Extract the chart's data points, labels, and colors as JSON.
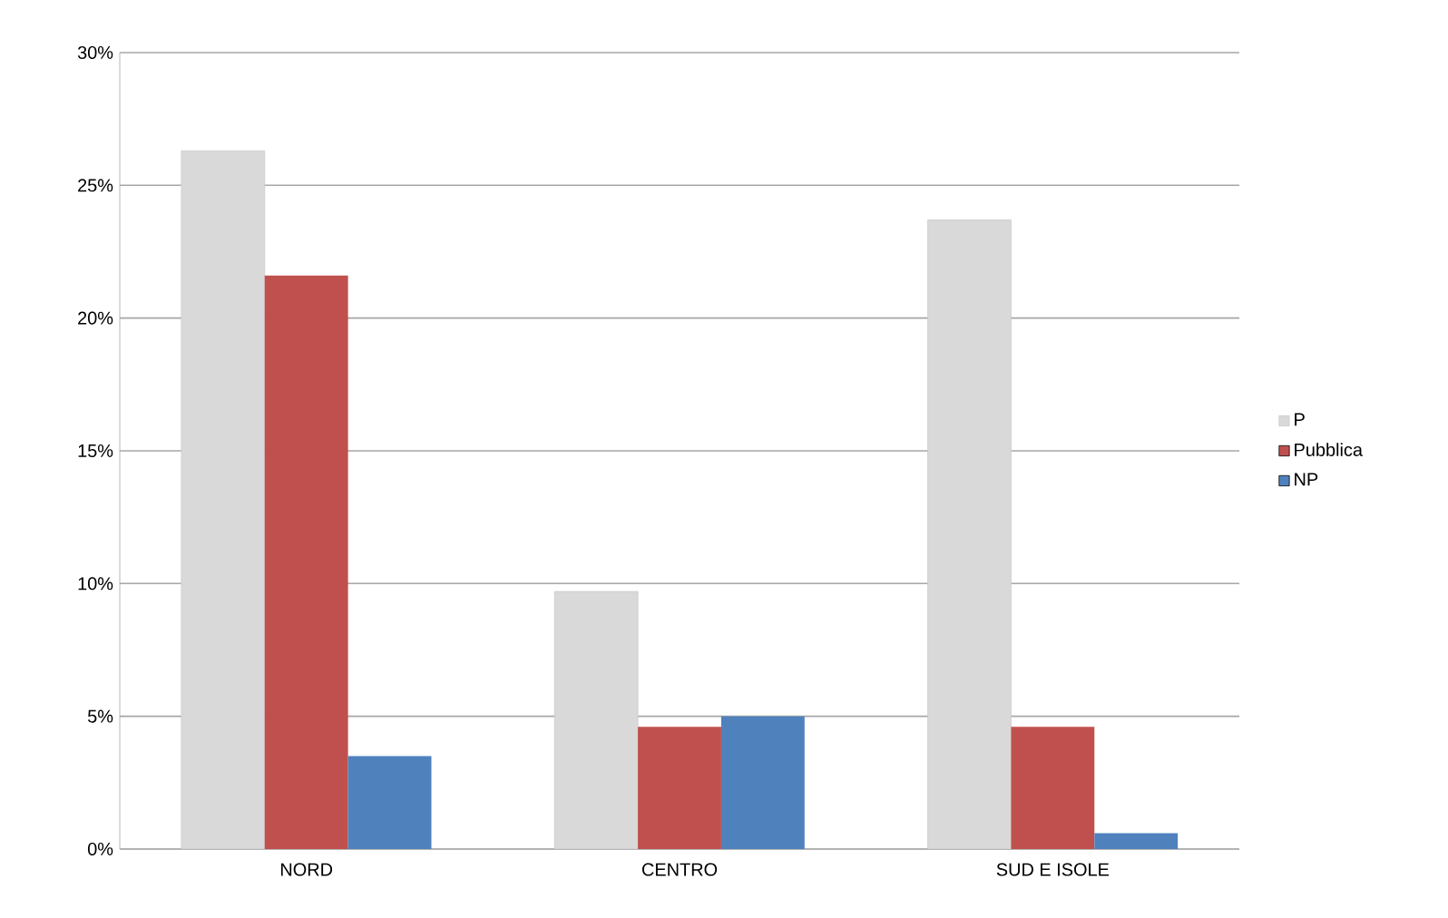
{
  "chart_data": {
    "type": "bar",
    "categories": [
      "NORD",
      "CENTRO",
      "SUD E ISOLE"
    ],
    "series": [
      {
        "name": "P",
        "color": "#d9d9d9",
        "values": [
          26.3,
          9.7,
          23.7
        ]
      },
      {
        "name": "Pubblica",
        "color": "#c0504d",
        "values": [
          21.6,
          4.6,
          4.6
        ]
      },
      {
        "name": "NP",
        "color": "#4f81bd",
        "values": [
          3.5,
          5.0,
          0.6
        ]
      }
    ],
    "ylim": [
      0,
      30
    ],
    "yticks": [
      {
        "value": 0,
        "label": "0%"
      },
      {
        "value": 5,
        "label": "5%"
      },
      {
        "value": 10,
        "label": "10%"
      },
      {
        "value": 15,
        "label": "15%"
      },
      {
        "value": 20,
        "label": "20%"
      },
      {
        "value": 25,
        "label": "25%"
      },
      {
        "value": 30,
        "label": "30%"
      }
    ],
    "grid": "y",
    "legend": "right"
  }
}
